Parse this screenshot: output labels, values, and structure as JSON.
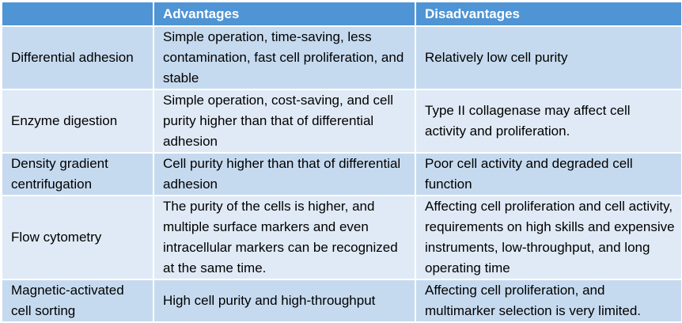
{
  "table": {
    "header": [
      "Advantages",
      "Disadvantages"
    ],
    "rows": [
      [
        "Differential adhesion",
        "Simple operation, time-saving, less contamination, fast cell proliferation, and stable",
        "Relatively low cell purity"
      ],
      [
        "Enzyme digestion",
        "Simple operation, cost-saving, and cell purity higher than that of differential adhesion",
        "Type II collagenase may affect cell activity and proliferation."
      ],
      [
        "Density gradient centrifugation",
        "Cell purity higher than that of differential adhesion",
        "Poor cell activity and degraded cell function"
      ],
      [
        "Flow cytometry",
        "The purity of the cells is higher, and multiple surface markers and even intracellular markers can be recognized at the same time.",
        "Affecting cell proliferation and cell activity, requirements on high skills and expensive instruments, low-throughput, and long operating time"
      ],
      [
        "Magnetic-activated cell sorting",
        "High cell purity and high-throughput",
        "Affecting cell proliferation, and multimarker selection is very limited."
      ]
    ]
  }
}
